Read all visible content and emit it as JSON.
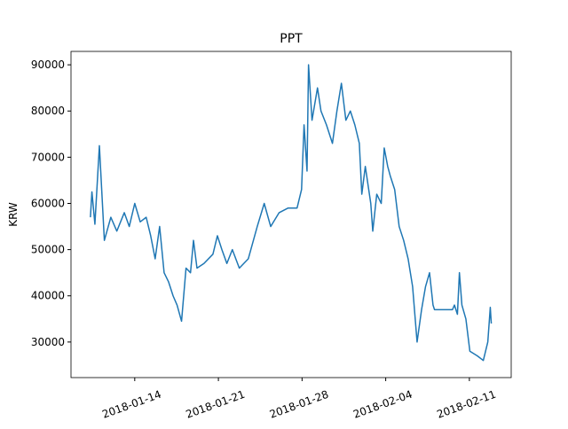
{
  "chart_data": {
    "type": "line",
    "title": "PPT",
    "y_label": "KRW",
    "x": [
      "2018-01-10 07:00",
      "2018-01-10 10:00",
      "2018-01-10 16:00",
      "2018-01-11 01:00",
      "2018-01-11 11:00",
      "2018-01-12 00:00",
      "2018-01-12 12:00",
      "2018-01-13 03:00",
      "2018-01-13 13:00",
      "2018-01-14 00:00",
      "2018-01-14 11:00",
      "2018-01-14 23:00",
      "2018-01-15 08:00",
      "2018-01-15 17:00",
      "2018-01-16 02:00",
      "2018-01-16 11:00",
      "2018-01-16 20:00",
      "2018-01-17 05:00",
      "2018-01-17 13:00",
      "2018-01-17 22:00",
      "2018-01-18 07:00",
      "2018-01-18 16:00",
      "2018-01-18 22:00",
      "2018-01-19 05:00",
      "2018-01-19 19:00",
      "2018-01-20 13:00",
      "2018-01-20 22:00",
      "2018-01-21 07:00",
      "2018-01-21 17:00",
      "2018-01-22 04:00",
      "2018-01-22 18:00",
      "2018-01-23 12:00",
      "2018-01-24 06:00",
      "2018-01-24 20:00",
      "2018-01-25 09:00",
      "2018-01-26 02:00",
      "2018-01-26 20:00",
      "2018-01-27 14:00",
      "2018-01-27 23:00",
      "2018-01-28 04:00",
      "2018-01-28 10:00",
      "2018-01-28 13:00",
      "2018-01-28 20:00",
      "2018-01-29 07:00",
      "2018-01-29 14:00",
      "2018-01-30 01:00",
      "2018-01-30 13:00",
      "2018-01-30 22:00",
      "2018-01-31 07:00",
      "2018-01-31 16:00",
      "2018-02-01 01:00",
      "2018-02-01 10:00",
      "2018-02-01 19:00",
      "2018-02-02 00:00",
      "2018-02-02 07:00",
      "2018-02-02 18:00",
      "2018-02-02 22:00",
      "2018-02-03 06:00",
      "2018-02-03 15:00",
      "2018-02-03 21:00",
      "2018-02-04 04:00",
      "2018-02-04 09:00",
      "2018-02-04 18:00",
      "2018-02-05 03:00",
      "2018-02-05 12:00",
      "2018-02-05 21:00",
      "2018-02-06 06:00",
      "2018-02-06 15:00",
      "2018-02-07 00:00",
      "2018-02-07 08:00",
      "2018-02-07 16:00",
      "2018-02-07 23:00",
      "2018-02-08 02:00",
      "2018-02-09 14:00",
      "2018-02-09 18:00",
      "2018-02-10 00:00",
      "2018-02-10 04:00",
      "2018-02-10 09:00",
      "2018-02-10 17:00",
      "2018-02-11 01:00",
      "2018-02-11 16:00",
      "2018-02-12 04:00",
      "2018-02-12 13:00",
      "2018-02-12 18:00",
      "2018-02-12 20:00"
    ],
    "series": [
      {
        "name": "PPT",
        "color": "#1f77b4",
        "values": [
          57000,
          62500,
          55500,
          72500,
          52000,
          57000,
          54000,
          58000,
          55000,
          60000,
          56000,
          57000,
          53000,
          48000,
          55000,
          45000,
          43000,
          40000,
          38000,
          34500,
          46000,
          45000,
          52000,
          46000,
          47000,
          49000,
          53000,
          50000,
          47000,
          50000,
          46000,
          48000,
          55000,
          60000,
          55000,
          58000,
          59000,
          59000,
          63000,
          77000,
          67000,
          90000,
          78000,
          85000,
          80000,
          77000,
          73000,
          80000,
          86000,
          78000,
          80000,
          77000,
          73000,
          62000,
          68000,
          60000,
          54000,
          62000,
          60000,
          72000,
          68000,
          66000,
          63000,
          55000,
          52000,
          48000,
          42000,
          30000,
          37000,
          42000,
          45000,
          38000,
          37000,
          37000,
          38000,
          36000,
          45000,
          38000,
          35000,
          28000,
          27000,
          26000,
          30000,
          37500,
          34000
        ]
      }
    ],
    "xlim": [
      "2018-01-08 16:00",
      "2018-02-14 12:00"
    ],
    "xticks": [
      "2018-01-14",
      "2018-01-21",
      "2018-01-28",
      "2018-02-04",
      "2018-02-11"
    ],
    "ylim": [
      22300,
      92900
    ],
    "yticks": [
      30000,
      40000,
      50000,
      60000,
      70000,
      80000,
      90000
    ]
  }
}
